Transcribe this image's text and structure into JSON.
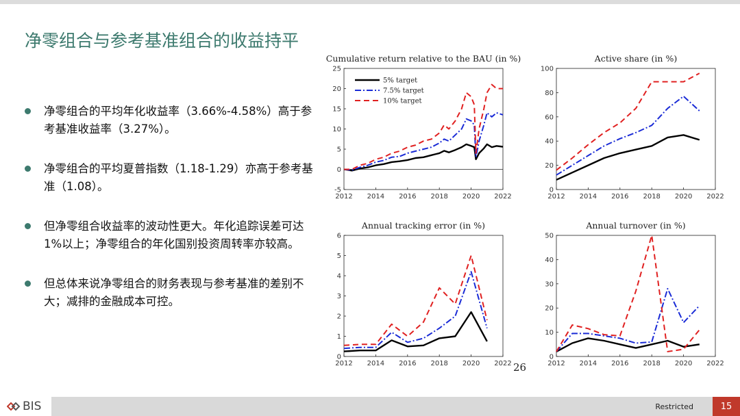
{
  "slide": {
    "title": "净零组合与参考基准组合的收益持平",
    "bullets": [
      "净零组合的平均年化收益率（3.66%-4.58%）高于参考基准收益率（3.27%）。",
      "净零组合的平均夏普指数（1.18-1.29）亦高于参考基准（1.08）。",
      "但净零组合收益率的波动性更大。年化追踪误差可达1%以上；净零组合的年化国别投资周转率亦较高。",
      "但总体来说净零组合的财务表现与参考基准的差别不大；减排的金融成本可控。"
    ],
    "figure_page_number": "26",
    "bullet_color": "#3d7a6e"
  },
  "footer": {
    "logo_text": "BIS",
    "classification": "Restricted",
    "page_number": "15",
    "page_number_bg": "#c0392b"
  },
  "chart_data": [
    {
      "type": "line",
      "title": "Cumulative return relative to the BAU (in %)",
      "x_ticks": [
        "2012",
        "2014",
        "2016",
        "2018",
        "2020",
        "2022"
      ],
      "y_ticks": [
        "-5",
        "0",
        "5",
        "10",
        "15",
        "20",
        "25"
      ],
      "xlim": [
        2012,
        2022
      ],
      "ylim": [
        -5,
        25
      ],
      "legend": [
        "5% target",
        "7.5% target",
        "10% target"
      ],
      "legend_position": "top-left",
      "series": [
        {
          "name": "5% target",
          "color": "#000000",
          "dash": "solid",
          "x": [
            2012,
            2012.5,
            2013,
            2013.5,
            2014,
            2014.5,
            2015,
            2015.5,
            2016,
            2016.5,
            2017,
            2017.5,
            2018,
            2018.3,
            2018.6,
            2019,
            2019.4,
            2019.7,
            2020,
            2020.2,
            2020.3,
            2020.5,
            2020.8,
            2021,
            2021.3,
            2021.6,
            2022
          ],
          "values": [
            0,
            -0.3,
            0.2,
            0.5,
            1,
            1.3,
            1.8,
            2,
            2.3,
            2.8,
            3,
            3.5,
            4,
            4.6,
            4.2,
            4.8,
            5.5,
            6.2,
            5.8,
            5.5,
            2.5,
            4,
            5.2,
            6.2,
            5.5,
            5.8,
            5.6
          ]
        },
        {
          "name": "7.5% target",
          "color": "#1a2bd6",
          "dash": "dashdot",
          "x": [
            2012,
            2012.5,
            2013,
            2013.5,
            2014,
            2014.5,
            2015,
            2015.5,
            2016,
            2016.5,
            2017,
            2017.5,
            2018,
            2018.3,
            2018.6,
            2019,
            2019.4,
            2019.7,
            2020,
            2020.2,
            2020.3,
            2020.5,
            2020.8,
            2021,
            2021.3,
            2021.6,
            2022
          ],
          "values": [
            0,
            -0.2,
            0.5,
            1,
            1.8,
            2.2,
            3,
            3.2,
            4,
            4.5,
            5,
            5.5,
            6.5,
            7.5,
            7,
            8.5,
            10,
            12.5,
            12,
            11,
            3,
            7,
            11,
            14,
            13,
            14,
            13.5
          ]
        },
        {
          "name": "10% target",
          "color": "#e02020",
          "dash": "dashed",
          "x": [
            2012,
            2012.5,
            2013,
            2013.5,
            2014,
            2014.5,
            2015,
            2015.5,
            2016,
            2016.5,
            2017,
            2017.5,
            2018,
            2018.3,
            2018.6,
            2019,
            2019.4,
            2019.7,
            2020,
            2020.2,
            2020.3,
            2020.5,
            2020.8,
            2021,
            2021.3,
            2021.6,
            2022
          ],
          "values": [
            0,
            0,
            1,
            1.5,
            2.5,
            3,
            4,
            4.5,
            5.5,
            6,
            7,
            7.5,
            9,
            11,
            10,
            12,
            15,
            19,
            18,
            16,
            4,
            10,
            15,
            19,
            21,
            20,
            20
          ]
        }
      ]
    },
    {
      "type": "line",
      "title": "Active share (in %)",
      "x_ticks": [
        "2012",
        "2014",
        "2016",
        "2018",
        "2020",
        "2022"
      ],
      "y_ticks": [
        "0",
        "20",
        "40",
        "60",
        "80",
        "100"
      ],
      "xlim": [
        2012,
        2022
      ],
      "ylim": [
        0,
        100
      ],
      "series": [
        {
          "name": "5% target",
          "color": "#000000",
          "dash": "solid",
          "x": [
            2012,
            2013,
            2014,
            2015,
            2016,
            2017,
            2018,
            2019,
            2020,
            2021
          ],
          "values": [
            8,
            14,
            20,
            26,
            30,
            33,
            36,
            43,
            45,
            41
          ]
        },
        {
          "name": "7.5% target",
          "color": "#1a2bd6",
          "dash": "dashdot",
          "x": [
            2012,
            2013,
            2014,
            2015,
            2016,
            2017,
            2018,
            2019,
            2020,
            2021
          ],
          "values": [
            12,
            20,
            28,
            36,
            42,
            47,
            53,
            67,
            77,
            65
          ]
        },
        {
          "name": "10% target",
          "color": "#e02020",
          "dash": "dashed",
          "x": [
            2012,
            2013,
            2014,
            2015,
            2016,
            2017,
            2018,
            2019,
            2020,
            2021
          ],
          "values": [
            16,
            26,
            37,
            47,
            55,
            67,
            89,
            89,
            89,
            96
          ]
        }
      ]
    },
    {
      "type": "line",
      "title": "Annual tracking error (in %)",
      "x_ticks": [
        "2012",
        "2014",
        "2016",
        "2018",
        "2020",
        "2022"
      ],
      "y_ticks": [
        "0",
        "1",
        "2",
        "3",
        "4",
        "5",
        "6"
      ],
      "xlim": [
        2012,
        2022
      ],
      "ylim": [
        0,
        6
      ],
      "series": [
        {
          "name": "5% target",
          "color": "#000000",
          "dash": "solid",
          "x": [
            2012,
            2013,
            2014,
            2015,
            2016,
            2017,
            2018,
            2019,
            2020,
            2021
          ],
          "values": [
            0.25,
            0.3,
            0.3,
            0.8,
            0.5,
            0.55,
            0.9,
            1.0,
            2.2,
            0.75
          ]
        },
        {
          "name": "7.5% target",
          "color": "#1a2bd6",
          "dash": "dashdot",
          "x": [
            2012,
            2013,
            2014,
            2015,
            2016,
            2017,
            2018,
            2019,
            2020,
            2021
          ],
          "values": [
            0.4,
            0.45,
            0.45,
            1.2,
            0.7,
            0.9,
            1.4,
            2.0,
            4.2,
            1.4
          ]
        },
        {
          "name": "10% target",
          "color": "#e02020",
          "dash": "dashed",
          "x": [
            2012,
            2013,
            2014,
            2015,
            2016,
            2017,
            2018,
            2019,
            2020,
            2021
          ],
          "values": [
            0.55,
            0.6,
            0.6,
            1.6,
            1.0,
            1.7,
            3.4,
            2.6,
            5.0,
            1.8
          ]
        }
      ]
    },
    {
      "type": "line",
      "title": "Annual turnover (in %)",
      "x_ticks": [
        "2012",
        "2014",
        "2016",
        "2018",
        "2020",
        "2022"
      ],
      "y_ticks": [
        "0",
        "10",
        "20",
        "30",
        "40",
        "50"
      ],
      "xlim": [
        2012,
        2022
      ],
      "ylim": [
        0,
        50
      ],
      "series": [
        {
          "name": "5% target",
          "color": "#000000",
          "dash": "solid",
          "x": [
            2012,
            2013,
            2014,
            2015,
            2016,
            2017,
            2018,
            2019,
            2020,
            2021
          ],
          "values": [
            2,
            5.5,
            7.5,
            6.5,
            5,
            3.5,
            5,
            6.5,
            4,
            5
          ]
        },
        {
          "name": "7.5% target",
          "color": "#1a2bd6",
          "dash": "dashdot",
          "x": [
            2012,
            2013,
            2014,
            2015,
            2016,
            2017,
            2018,
            2019,
            2020,
            2021
          ],
          "values": [
            2,
            9.5,
            9.5,
            8.5,
            7.5,
            5.5,
            6,
            28,
            14,
            21
          ]
        },
        {
          "name": "10% target",
          "color": "#e02020",
          "dash": "dashed",
          "x": [
            2012,
            2013,
            2014,
            2015,
            2016,
            2017,
            2018,
            2019,
            2020,
            2021
          ],
          "values": [
            2,
            13,
            11.5,
            9,
            8.5,
            27,
            52,
            2,
            3,
            11
          ]
        }
      ]
    }
  ]
}
